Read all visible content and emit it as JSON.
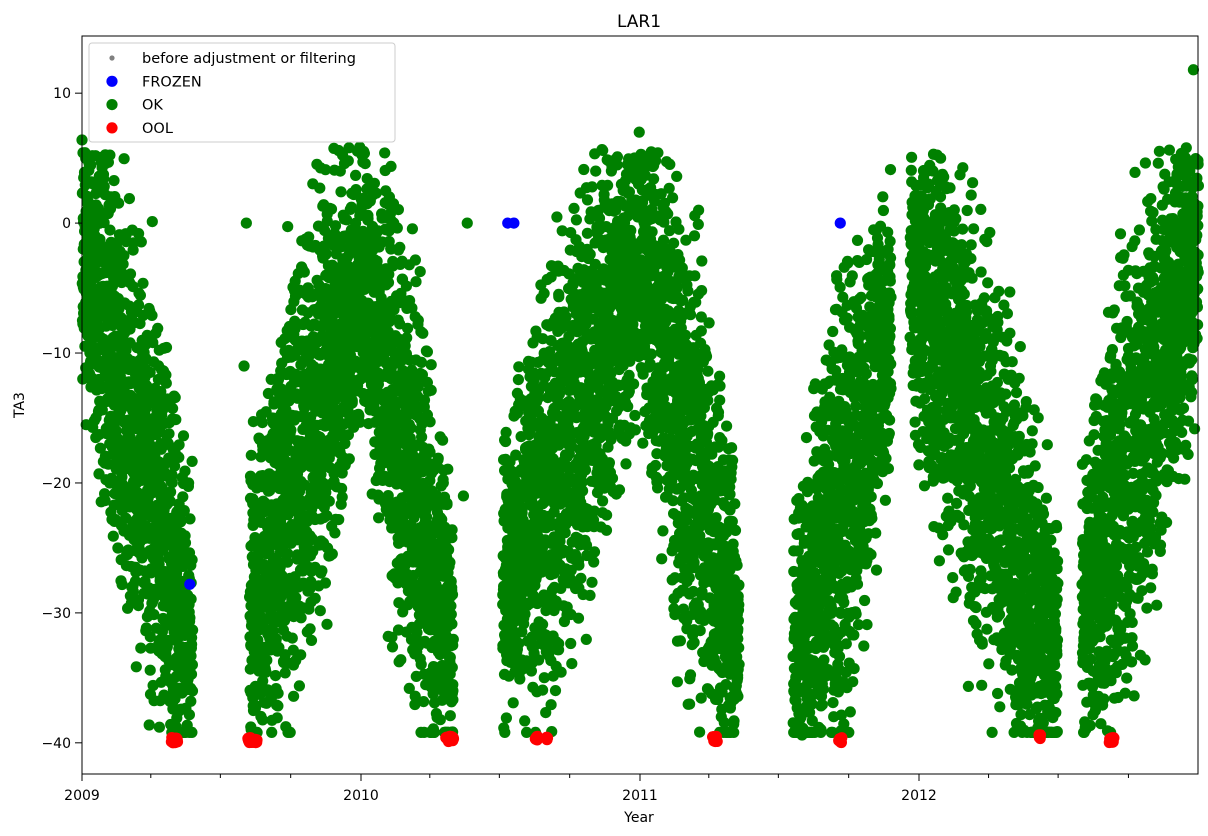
{
  "chart_data": {
    "type": "scatter",
    "title": "LAR1",
    "xlabel": "Year",
    "ylabel": "TA3",
    "xlim": [
      "2009-01-01",
      "2012-12-31"
    ],
    "ylim": [
      -42.4,
      14.4
    ],
    "x_major_ticks": [
      {
        "date": "2009-01-01",
        "label": "2009"
      },
      {
        "date": "2010-01-01",
        "label": "2010"
      },
      {
        "date": "2011-01-01",
        "label": "2011"
      },
      {
        "date": "2012-01-01",
        "label": "2012"
      }
    ],
    "y_ticks": [
      {
        "value": 10,
        "label": "10"
      },
      {
        "value": 0,
        "label": "0"
      },
      {
        "value": -10,
        "label": "−10"
      },
      {
        "value": -20,
        "label": "−20"
      },
      {
        "value": -30,
        "label": "−30"
      },
      {
        "value": -40,
        "label": "−40"
      }
    ],
    "grid": false,
    "legend_position": "top-left",
    "series": [
      {
        "name": "before adjustment or filtering",
        "color": "#808080",
        "marker": "small-dot",
        "points": []
      },
      {
        "name": "FROZEN",
        "color": "#0000ff",
        "marker": "dot",
        "points": [
          [
            "2010-07-12",
            0
          ],
          [
            "2010-07-20",
            0
          ],
          [
            "2011-09-20",
            0
          ],
          [
            "2009-05-22",
            -27.8
          ]
        ]
      },
      {
        "name": "OK",
        "color": "#008000",
        "marker": "dot",
        "segments": [
          [
            "2009-01-01",
            "2009-05-25",
            -2,
            -32
          ],
          [
            "2009-08-08",
            "2009-12-31",
            -30,
            -4
          ],
          [
            "2010-01-01",
            "2010-05-01",
            -3,
            -33
          ],
          [
            "2010-07-05",
            "2010-12-31",
            -28,
            -3
          ],
          [
            "2011-01-01",
            "2011-05-10",
            -3,
            -32
          ],
          [
            "2011-07-20",
            "2011-11-25",
            -34,
            -8
          ],
          [
            "2011-12-20",
            "2012-06-30",
            -3,
            -33
          ],
          [
            "2012-08-01",
            "2012-12-31",
            -30,
            -2
          ]
        ],
        "extra_points": [
          [
            "2009-08-01",
            -11
          ],
          [
            "2009-08-04",
            0
          ],
          [
            "2010-05-15",
            -21
          ],
          [
            "2010-05-20",
            0
          ],
          [
            "2010-12-31",
            7
          ],
          [
            "2012-12-25",
            11.8
          ],
          [
            "2009-01-01",
            6.4
          ],
          [
            "2010-02-01",
            5.4
          ],
          [
            "2012-01-20",
            5.3
          ],
          [
            "2011-08-01",
            -39.4
          ],
          [
            "2009-01-02",
            -12
          ]
        ]
      },
      {
        "name": "OOL",
        "color": "#ff0000",
        "marker": "dot",
        "clusters": [
          [
            "2009-04-28",
            "2009-05-06",
            -39.8
          ],
          [
            "2009-08-06",
            "2009-08-18",
            -39.8
          ],
          [
            "2010-04-22",
            "2010-05-02",
            -39.7
          ],
          [
            "2010-08-17",
            "2010-08-20",
            -39.7
          ],
          [
            "2010-09-01",
            "2010-09-02",
            -39.6
          ],
          [
            "2011-04-06",
            "2011-04-12",
            -39.7
          ],
          [
            "2011-09-18",
            "2011-09-22",
            -39.8
          ],
          [
            "2012-06-06",
            "2012-06-08",
            -39.5
          ],
          [
            "2012-09-06",
            "2012-09-12",
            -39.8
          ]
        ]
      }
    ]
  }
}
